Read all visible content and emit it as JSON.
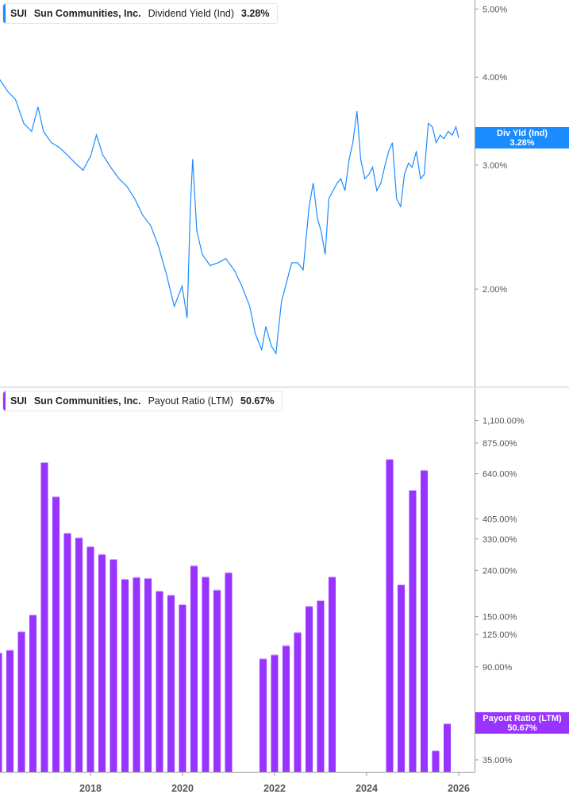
{
  "colors": {
    "dividend_yield": "#1a8cff",
    "payout_ratio": "#9933ff",
    "axis": "#999999"
  },
  "top_legend": {
    "ticker": "SUI",
    "company": "Sun Communities, Inc.",
    "metric": "Dividend Yield (Ind)",
    "value": "3.28%"
  },
  "bottom_legend": {
    "ticker": "SUI",
    "company": "Sun Communities, Inc.",
    "metric": "Payout Ratio (LTM)",
    "value": "50.67%"
  },
  "top_badge": {
    "label": "Div Yld (Ind)",
    "value": "3.28%"
  },
  "bottom_badge": {
    "label": "Payout Ratio (LTM)",
    "value": "50.67%"
  },
  "chart_data": [
    {
      "type": "line",
      "series_name": "Dividend Yield (Ind)",
      "yscale": "log",
      "ylim": [
        1.5,
        5.1
      ],
      "xlim": [
        2016.0,
        2026.3
      ],
      "y_ticks": [
        "5.00%",
        "4.00%",
        "3.00%",
        "2.00%"
      ],
      "y_tick_values": [
        5,
        4,
        3,
        2
      ],
      "points": [
        [
          2016.03,
          3.97
        ],
        [
          2016.2,
          3.82
        ],
        [
          2016.37,
          3.72
        ],
        [
          2016.55,
          3.44
        ],
        [
          2016.72,
          3.35
        ],
        [
          2016.86,
          3.63
        ],
        [
          2016.98,
          3.35
        ],
        [
          2017.15,
          3.23
        ],
        [
          2017.32,
          3.18
        ],
        [
          2017.5,
          3.1
        ],
        [
          2017.67,
          3.02
        ],
        [
          2017.84,
          2.95
        ],
        [
          2018.01,
          3.1
        ],
        [
          2018.13,
          3.31
        ],
        [
          2018.27,
          3.1
        ],
        [
          2018.44,
          2.98
        ],
        [
          2018.62,
          2.87
        ],
        [
          2018.79,
          2.8
        ],
        [
          2018.96,
          2.69
        ],
        [
          2019.13,
          2.55
        ],
        [
          2019.31,
          2.46
        ],
        [
          2019.48,
          2.3
        ],
        [
          2019.65,
          2.1
        ],
        [
          2019.82,
          1.89
        ],
        [
          2019.99,
          2.02
        ],
        [
          2020.1,
          1.82
        ],
        [
          2020.17,
          2.62
        ],
        [
          2020.22,
          3.06
        ],
        [
          2020.31,
          2.42
        ],
        [
          2020.43,
          2.24
        ],
        [
          2020.6,
          2.16
        ],
        [
          2020.77,
          2.18
        ],
        [
          2020.94,
          2.21
        ],
        [
          2021.12,
          2.13
        ],
        [
          2021.29,
          2.02
        ],
        [
          2021.46,
          1.89
        ],
        [
          2021.58,
          1.73
        ],
        [
          2021.72,
          1.64
        ],
        [
          2021.81,
          1.77
        ],
        [
          2021.93,
          1.66
        ],
        [
          2022.03,
          1.62
        ],
        [
          2022.15,
          1.92
        ],
        [
          2022.24,
          2.02
        ],
        [
          2022.37,
          2.18
        ],
        [
          2022.5,
          2.18
        ],
        [
          2022.62,
          2.13
        ],
        [
          2022.75,
          2.62
        ],
        [
          2022.84,
          2.83
        ],
        [
          2022.93,
          2.52
        ],
        [
          2023.01,
          2.42
        ],
        [
          2023.1,
          2.24
        ],
        [
          2023.18,
          2.69
        ],
        [
          2023.27,
          2.76
        ],
        [
          2023.36,
          2.83
        ],
        [
          2023.44,
          2.87
        ],
        [
          2023.53,
          2.76
        ],
        [
          2023.62,
          3.06
        ],
        [
          2023.7,
          3.23
        ],
        [
          2023.79,
          3.58
        ],
        [
          2023.87,
          3.06
        ],
        [
          2023.96,
          2.87
        ],
        [
          2024.05,
          2.91
        ],
        [
          2024.13,
          2.98
        ],
        [
          2024.22,
          2.76
        ],
        [
          2024.31,
          2.83
        ],
        [
          2024.39,
          2.98
        ],
        [
          2024.48,
          3.14
        ],
        [
          2024.56,
          3.23
        ],
        [
          2024.65,
          2.69
        ],
        [
          2024.74,
          2.62
        ],
        [
          2024.82,
          2.91
        ],
        [
          2024.91,
          3.02
        ],
        [
          2024.99,
          2.98
        ],
        [
          2025.08,
          3.14
        ],
        [
          2025.17,
          2.87
        ],
        [
          2025.25,
          2.91
        ],
        [
          2025.34,
          3.44
        ],
        [
          2025.43,
          3.4
        ],
        [
          2025.51,
          3.23
        ],
        [
          2025.6,
          3.31
        ],
        [
          2025.68,
          3.27
        ],
        [
          2025.77,
          3.35
        ],
        [
          2025.86,
          3.31
        ],
        [
          2025.94,
          3.4
        ],
        [
          2026.0,
          3.28
        ]
      ]
    },
    {
      "type": "bar",
      "series_name": "Payout Ratio (LTM)",
      "yscale": "log",
      "ylim": [
        31,
        1200
      ],
      "xlim": [
        2016.0,
        2026.3
      ],
      "y_ticks": [
        "1,100.00%",
        "875.00%",
        "640.00%",
        "405.00%",
        "330.00%",
        "240.00%",
        "150.00%",
        "125.00%",
        "90.00%",
        "35.00%"
      ],
      "y_tick_values": [
        1100,
        875,
        640,
        405,
        330,
        240,
        150,
        125,
        90,
        35
      ],
      "x_ticks": [
        "2018",
        "2020",
        "2022",
        "2024",
        "2026"
      ],
      "x_tick_values": [
        2018,
        2020,
        2022,
        2024,
        2026
      ],
      "bars": [
        [
          2016.0,
          104
        ],
        [
          2016.25,
          107
        ],
        [
          2016.5,
          129
        ],
        [
          2016.75,
          153
        ],
        [
          2017.0,
          720
        ],
        [
          2017.25,
          508
        ],
        [
          2017.5,
          351
        ],
        [
          2017.75,
          335
        ],
        [
          2018.0,
          306
        ],
        [
          2018.25,
          283
        ],
        [
          2018.5,
          269
        ],
        [
          2018.75,
          220
        ],
        [
          2019.0,
          224
        ],
        [
          2019.25,
          222
        ],
        [
          2019.5,
          195
        ],
        [
          2019.75,
          187
        ],
        [
          2020.0,
          170
        ],
        [
          2020.25,
          252
        ],
        [
          2020.5,
          225
        ],
        [
          2020.75,
          197
        ],
        [
          2021.0,
          235
        ],
        [
          2021.75,
          98
        ],
        [
          2022.0,
          102
        ],
        [
          2022.25,
          112
        ],
        [
          2022.5,
          128
        ],
        [
          2022.75,
          167
        ],
        [
          2023.0,
          177
        ],
        [
          2023.25,
          225
        ],
        [
          2024.5,
          743
        ],
        [
          2024.75,
          208
        ],
        [
          2025.0,
          543
        ],
        [
          2025.25,
          665
        ],
        [
          2025.5,
          38.5
        ],
        [
          2025.75,
          50.67
        ]
      ]
    }
  ]
}
